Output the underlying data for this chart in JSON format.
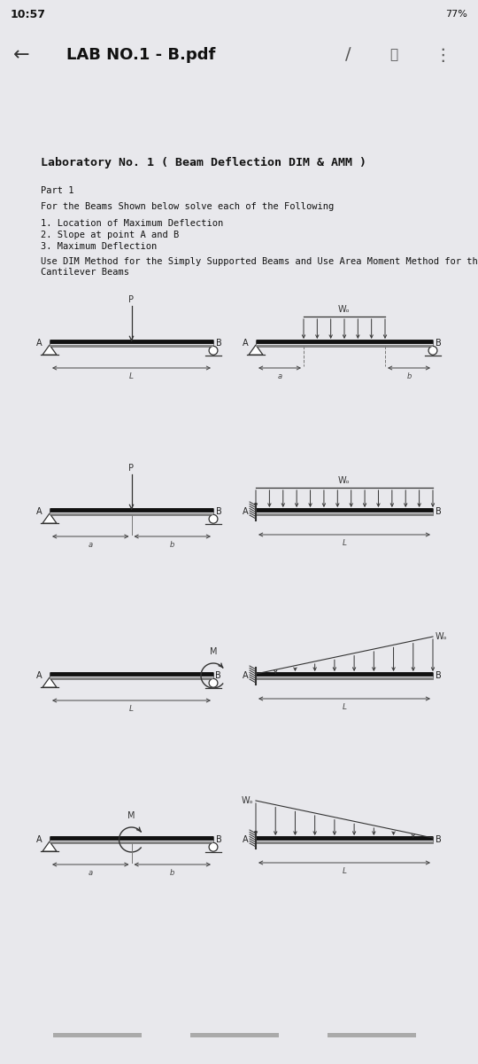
{
  "bg_color": "#e8e8ec",
  "paper_color": "#ffffff",
  "status_time": "10:57",
  "status_battery": "77%",
  "nav_title": "LAB NO.1 - B.pdf",
  "title": "Laboratory No. 1 ( Beam Deflection DIM & AMM )",
  "part": "Part 1",
  "line1": "For the Beams Shown below solve each of the Following",
  "items": [
    "1. Location of Maximum Deflection",
    "2. Slope at point A and B",
    "3. Maximum Deflection"
  ],
  "note": "Use DIM Method for the Simply Supported Beams and Use Area Moment Method for the\nCantilever Beams",
  "text_color": "#111111",
  "beam_dark": "#1a1a1a",
  "beam_mid": "#555555",
  "beam_light": "#aaaaaa",
  "support_color": "#333333",
  "load_color": "#333333",
  "dim_color": "#444444"
}
